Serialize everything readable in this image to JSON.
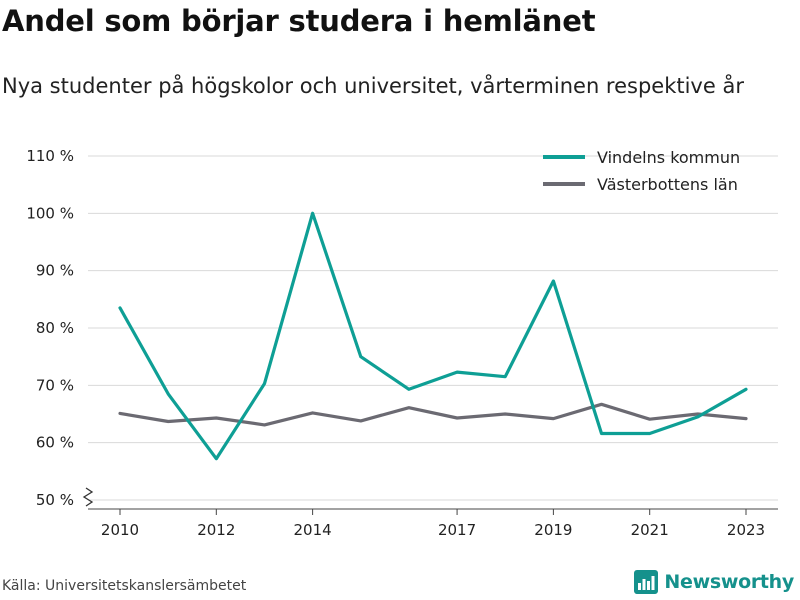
{
  "title": "Andel som börjar studera i hemlänet",
  "subtitle": "Nya studenter på högskolor och universitet, vårterminen respektive år",
  "source": "Källa: Universitetskanslersämbetet",
  "brand": {
    "name": "Newsworthy",
    "icon": "bar-chart-logo-icon",
    "color": "#15918c"
  },
  "chart_data": {
    "type": "line",
    "x": [
      2010,
      2011,
      2012,
      2013,
      2014,
      2015,
      2016,
      2017,
      2018,
      2019,
      2020,
      2021,
      2022,
      2023
    ],
    "x_tick_values": [
      2010,
      2012,
      2014,
      2017,
      2019,
      2021,
      2023
    ],
    "x_tick_labels": [
      "2010",
      "2012",
      "2014",
      "2017",
      "2019",
      "2021",
      "2023"
    ],
    "y_ticks": [
      50,
      60,
      70,
      80,
      90,
      100,
      110
    ],
    "y_tick_labels": [
      "50 %",
      "60 %",
      "70 %",
      "80 %",
      "90 %",
      "100 %",
      "110 %"
    ],
    "ylim": [
      50,
      110
    ],
    "y_axis_break": true,
    "grid": true,
    "legend_position": "top-right",
    "xlabel": "",
    "ylabel": "",
    "series": [
      {
        "name": "Vindelns kommun",
        "color": "#0e9f95",
        "values": [
          83.5,
          68.5,
          57.2,
          70.3,
          100,
          75,
          69.3,
          72.3,
          71.5,
          88.2,
          61.6,
          61.6,
          64.5,
          69.3
        ]
      },
      {
        "name": "Västerbottens län",
        "color": "#6b6a72",
        "values": [
          65.1,
          63.7,
          64.3,
          63.1,
          65.2,
          63.8,
          66.1,
          64.3,
          65.0,
          64.2,
          66.7,
          64.1,
          65.0,
          64.2
        ]
      }
    ]
  }
}
